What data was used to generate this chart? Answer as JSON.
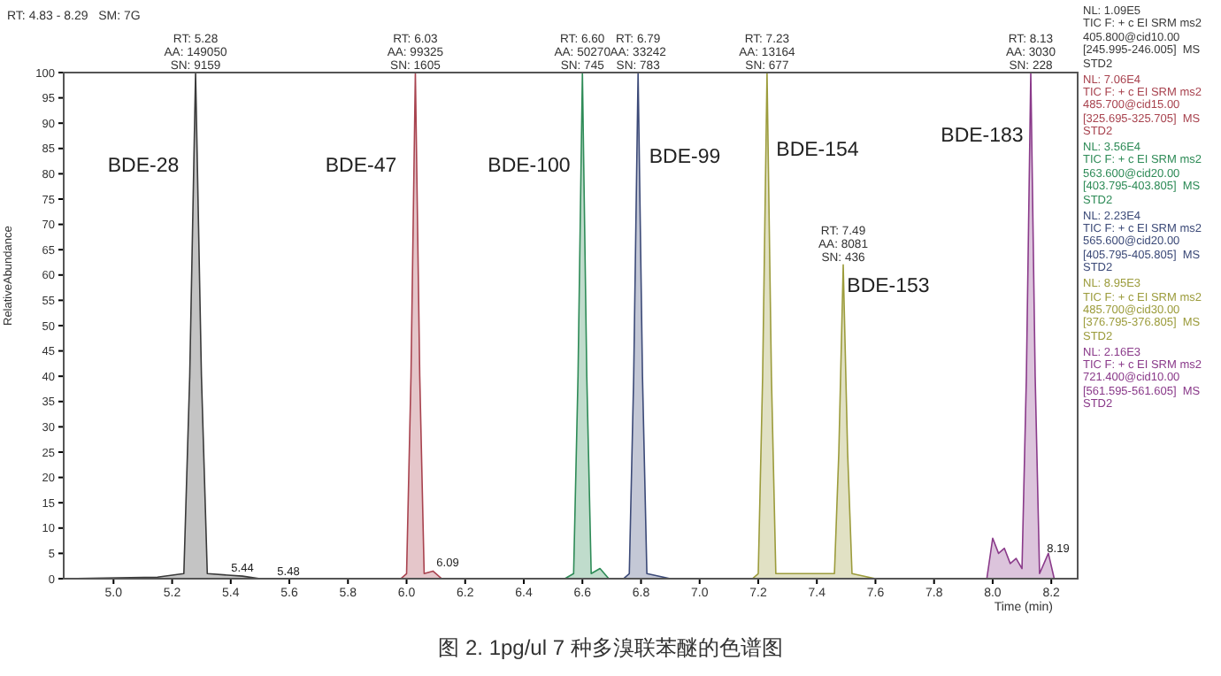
{
  "chart_data": {
    "type": "area",
    "title": "图 2. 1pg/ul 7 种多溴联苯醚的色谱图",
    "subtitle": "RT: 4.83 - 8.29   SM: 7G",
    "xlabel": "Time (min)",
    "ylabel": "RelativeAbundance",
    "xlim": [
      4.83,
      8.29
    ],
    "xticks": [
      {
        "value": 5,
        "label": "5.0"
      },
      {
        "value": 5.2,
        "label": "5.2"
      },
      {
        "value": 5.4,
        "label": "5.4"
      },
      {
        "value": 5.6,
        "label": "5.6"
      },
      {
        "value": 5.8,
        "label": "5.8"
      },
      {
        "value": 6,
        "label": "6.0"
      },
      {
        "value": 6.2,
        "label": "6.2"
      },
      {
        "value": 6.4,
        "label": "6.4"
      },
      {
        "value": 6.6,
        "label": "6.6"
      },
      {
        "value": 6.8,
        "label": "6.8"
      },
      {
        "value": 7,
        "label": "7.0"
      },
      {
        "value": 7.2,
        "label": "7.2"
      },
      {
        "value": 7.4,
        "label": "7.4"
      },
      {
        "value": 7.6,
        "label": "7.6"
      },
      {
        "value": 7.8,
        "label": "7.8"
      },
      {
        "value": 8,
        "label": "8.0"
      },
      {
        "value": 8.2,
        "label": "8.2"
      }
    ],
    "ylim": [
      0,
      100
    ],
    "yticks": [
      0,
      5,
      10,
      15,
      20,
      25,
      30,
      35,
      40,
      45,
      50,
      55,
      60,
      65,
      70,
      75,
      80,
      85,
      90,
      95,
      100
    ],
    "grid": false,
    "legend": "right",
    "marker": "none",
    "series": [
      {
        "name": "NL: 1.09E5\nTIC F: + c EI SRM ms2\n405.800@cid10.00\n[245.995-246.005]  MS\nSTD2",
        "color": "#3a3a3a",
        "x": [
          4.83,
          5.15,
          5.24,
          5.26,
          5.28,
          5.3,
          5.32,
          5.44,
          5.5,
          8.29
        ],
        "values": [
          0,
          0.3,
          1,
          40,
          100,
          40,
          1,
          0.5,
          0,
          0
        ]
      },
      {
        "name": "NL: 7.06E4\nTIC F: + c EI SRM ms2\n485.700@cid15.00\n[325.695-325.705]  MS\nSTD2",
        "color": "#a8434f",
        "x": [
          5.98,
          6.0,
          6.015,
          6.03,
          6.045,
          6.06,
          6.09,
          6.12
        ],
        "values": [
          0,
          1,
          40,
          100,
          40,
          1,
          1.5,
          0
        ]
      },
      {
        "name": "NL: 3.56E4\nTIC F: + c EI SRM ms2\n563.600@cid20.00\n[403.795-403.805]  MS\nSTD2",
        "color": "#2e8b57",
        "x": [
          6.54,
          6.57,
          6.585,
          6.6,
          6.615,
          6.63,
          6.66,
          6.69
        ],
        "values": [
          0,
          1,
          40,
          100,
          40,
          1,
          2,
          0
        ]
      },
      {
        "name": "NL: 2.23E4\nTIC F: + c EI SRM ms2\n565.600@cid20.00\n[405.795-405.805]  MS\nSTD2",
        "color": "#3c4a78",
        "x": [
          6.74,
          6.76,
          6.775,
          6.79,
          6.805,
          6.82,
          6.9
        ],
        "values": [
          0,
          1,
          40,
          100,
          40,
          1,
          0
        ]
      },
      {
        "name": "NL: 8.95E3\nTIC F: + c EI SRM ms2\n485.700@cid30.00\n[376.795-376.805]  MS\nSTD2",
        "color": "#9c9c3c",
        "x": [
          7.18,
          7.2,
          7.215,
          7.23,
          7.245,
          7.26,
          7.4,
          7.46,
          7.475,
          7.49,
          7.505,
          7.52,
          7.6
        ],
        "values": [
          0,
          1,
          40,
          100,
          40,
          1,
          1,
          1,
          25,
          62,
          25,
          1,
          0
        ]
      },
      {
        "name": "NL: 2.16E3\nTIC F: + c EI SRM ms2\n721.400@cid10.00\n[561.595-561.605]  MS\nSTD2",
        "color": "#8a3a8a",
        "x": [
          7.98,
          8.0,
          8.02,
          8.04,
          8.06,
          8.08,
          8.1,
          8.115,
          8.13,
          8.145,
          8.16,
          8.19,
          8.21
        ],
        "values": [
          0,
          8,
          5,
          6,
          3,
          4,
          2,
          40,
          100,
          40,
          1,
          5,
          0
        ]
      }
    ],
    "annotations": [
      {
        "text": "RT: 5.28\nAA: 149050\nSN: 9159",
        "x": 5.28,
        "y": 100
      },
      {
        "text": "RT: 6.03\nAA: 99325\nSN: 1605",
        "x": 6.03,
        "y": 100
      },
      {
        "text": "RT: 6.60\nAA: 50270\nSN: 745",
        "x": 6.6,
        "y": 100
      },
      {
        "text": "RT: 6.79\nAA: 33242\nSN: 783",
        "x": 6.79,
        "y": 100
      },
      {
        "text": "RT: 7.23\nAA: 13164\nSN: 677",
        "x": 7.23,
        "y": 100
      },
      {
        "text": "RT: 7.49\nAA: 8081\nSN: 436",
        "x": 7.49,
        "y": 62
      },
      {
        "text": "RT: 8.13\nAA: 3030\nSN: 228",
        "x": 8.13,
        "y": 100
      },
      "BDE-28",
      "BDE-47",
      "BDE-100",
      "BDE-99",
      "BDE-154",
      "BDE-153",
      "BDE-183",
      "5.44",
      "5.48",
      "6.09",
      "8.19"
    ]
  }
}
